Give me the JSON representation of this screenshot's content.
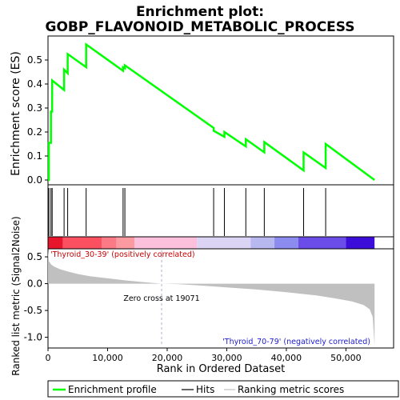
{
  "chart_data": {
    "type": "line",
    "title_lines": [
      "Enrichment plot:",
      "GOBP_FLAVONOID_METABOLIC_PROCESS"
    ],
    "es_panel": {
      "ylabel": "Enrichment score (ES)",
      "ylim": [
        -0.02,
        0.6
      ],
      "yticks": [
        0.0,
        0.1,
        0.2,
        0.3,
        0.4,
        0.5
      ],
      "ytick_labels": [
        "0.0",
        "0.1",
        "0.2",
        "0.3",
        "0.4",
        "0.5"
      ],
      "color": "#00ff00",
      "series": {
        "name": "Enrichment profile",
        "x": [
          0,
          150,
          150,
          500,
          500,
          700,
          700,
          2700,
          2700,
          3300,
          3300,
          6400,
          6400,
          12600,
          12600,
          12900,
          12900,
          27800,
          27800,
          29600,
          29600,
          33200,
          33200,
          36300,
          36300,
          42900,
          42900,
          46600,
          46600,
          54800
        ],
        "y": [
          0.0,
          0.0,
          0.155,
          0.155,
          0.285,
          0.285,
          0.415,
          0.375,
          0.46,
          0.445,
          0.525,
          0.47,
          0.565,
          0.455,
          0.47,
          0.465,
          0.478,
          0.217,
          0.205,
          0.18,
          0.2,
          0.14,
          0.17,
          0.115,
          0.158,
          0.04,
          0.115,
          0.05,
          0.15,
          0.0
        ]
      }
    },
    "hits": [
      150,
      500,
      700,
      2700,
      3300,
      6400,
      12600,
      12900,
      27800,
      29600,
      33200,
      36300,
      42900,
      46600
    ],
    "rank_bar": {
      "segments": [
        {
          "from": 0,
          "to": 2500,
          "color": "#e8162c"
        },
        {
          "from": 2500,
          "to": 9000,
          "color": "#fa5060"
        },
        {
          "from": 9000,
          "to": 11500,
          "color": "#fb7a85"
        },
        {
          "from": 11500,
          "to": 14500,
          "color": "#fc9aa2"
        },
        {
          "from": 14500,
          "to": 25000,
          "color": "#fcc0dc"
        },
        {
          "from": 25000,
          "to": 34000,
          "color": "#dcd4f4"
        },
        {
          "from": 34000,
          "to": 38000,
          "color": "#b8b8f0"
        },
        {
          "from": 38000,
          "to": 42000,
          "color": "#8c8cf0"
        },
        {
          "from": 42000,
          "to": 50000,
          "color": "#6a4ce8"
        },
        {
          "from": 50000,
          "to": 54800,
          "color": "#3c0cd8"
        }
      ]
    },
    "metric_panel": {
      "ylabel": "Ranked list metric (Signal2Noise)",
      "ylim": [
        -1.2,
        0.65
      ],
      "yticks": [
        0.5,
        0.0,
        -0.5,
        -1.0
      ],
      "ytick_labels": [
        "0.5",
        "0.0",
        "-0.5",
        "-1.0"
      ],
      "color": "#c0c0c0",
      "points": [
        [
          0,
          0.62
        ],
        [
          150,
          0.42
        ],
        [
          500,
          0.36
        ],
        [
          1000,
          0.32
        ],
        [
          2000,
          0.27
        ],
        [
          3500,
          0.22
        ],
        [
          5000,
          0.18
        ],
        [
          7000,
          0.14
        ],
        [
          10000,
          0.1
        ],
        [
          13000,
          0.06
        ],
        [
          16000,
          0.03
        ],
        [
          19071,
          0.0
        ],
        [
          22000,
          -0.01
        ],
        [
          25000,
          -0.03
        ],
        [
          30000,
          -0.07
        ],
        [
          35000,
          -0.11
        ],
        [
          40000,
          -0.16
        ],
        [
          45000,
          -0.22
        ],
        [
          48000,
          -0.27
        ],
        [
          51000,
          -0.33
        ],
        [
          53000,
          -0.4
        ],
        [
          54000,
          -0.48
        ],
        [
          54500,
          -0.62
        ],
        [
          54800,
          -1.15
        ]
      ],
      "zero_cross_text": "Zero cross at 19071",
      "zero_cross": 19071,
      "pos_label": "'Thyroid_30-39' (positively correlated)",
      "neg_label": "'Thyroid_70-79' (negatively correlated)"
    },
    "xlabel": "Rank in Ordered Dataset",
    "xlim": [
      0,
      58000
    ],
    "xticks": [
      0,
      10000,
      20000,
      30000,
      40000,
      50000
    ],
    "xtick_labels": [
      "0",
      "10,000",
      "20,000",
      "30,000",
      "40,000",
      "50,000"
    ],
    "legend": {
      "placement": "bottom",
      "items": [
        {
          "label": "Enrichment profile",
          "color": "#00ff00"
        },
        {
          "label": "Hits",
          "color": "#000000"
        },
        {
          "label": "Ranking metric scores",
          "color": "#c0c0c0"
        }
      ]
    }
  }
}
